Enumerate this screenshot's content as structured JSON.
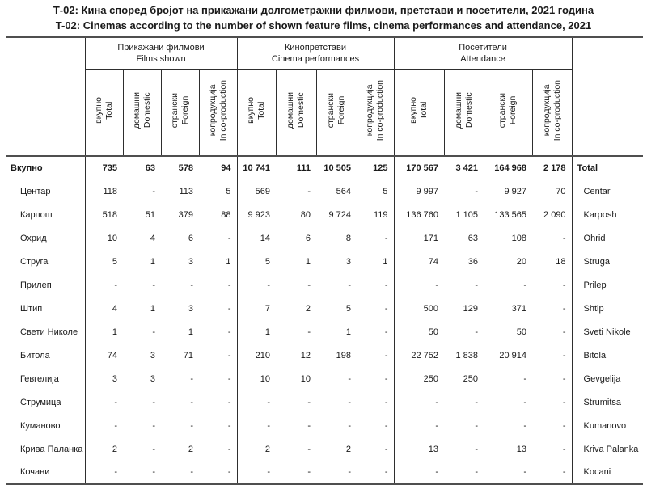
{
  "title": {
    "mk": "Т-02: Кина според бројот на прикажани долгометражни филмови, претстави и посетители, 2021 година",
    "en": "T-02: Cinemas according to the number of shown feature films, cinema performances and attendance, 2021"
  },
  "colors": {
    "text": "#1a1a1a",
    "thick_rule": "#4f4f4f",
    "thin_rule": "#2e2e2e",
    "background": "#ffffff"
  },
  "table": {
    "groups": [
      {
        "label_mk": "Прикажани филмови",
        "label_en": "Films shown"
      },
      {
        "label_mk": "Кинопретстави",
        "label_en": "Cinema performances"
      },
      {
        "label_mk": "Посетители",
        "label_en": "Attendance"
      }
    ],
    "subcolumns": [
      {
        "mk": "вкупно",
        "en": "Total"
      },
      {
        "mk": "домашни",
        "en": "Domestic"
      },
      {
        "mk": "странски",
        "en": "Foreign"
      },
      {
        "mk": "копродукција",
        "en": "In co-production"
      }
    ],
    "rows": [
      {
        "mk": "Вкупно",
        "en": "Total",
        "bold": true,
        "values": [
          "735",
          "63",
          "578",
          "94",
          "10 741",
          "111",
          "10 505",
          "125",
          "170 567",
          "3 421",
          "164 968",
          "2 178"
        ]
      },
      {
        "mk": "Центар",
        "en": "Centar",
        "bold": false,
        "values": [
          "118",
          "-",
          "113",
          "5",
          "569",
          "-",
          "564",
          "5",
          "9 997",
          "-",
          "9 927",
          "70"
        ]
      },
      {
        "mk": "Карпош",
        "en": "Karposh",
        "bold": false,
        "values": [
          "518",
          "51",
          "379",
          "88",
          "9 923",
          "80",
          "9 724",
          "119",
          "136 760",
          "1 105",
          "133 565",
          "2 090"
        ]
      },
      {
        "mk": "Охрид",
        "en": "Ohrid",
        "bold": false,
        "values": [
          "10",
          "4",
          "6",
          "-",
          "14",
          "6",
          "8",
          "-",
          "171",
          "63",
          "108",
          "-"
        ]
      },
      {
        "mk": "Струга",
        "en": "Struga",
        "bold": false,
        "values": [
          "5",
          "1",
          "3",
          "1",
          "5",
          "1",
          "3",
          "1",
          "74",
          "36",
          "20",
          "18"
        ]
      },
      {
        "mk": "Прилеп",
        "en": "Prilep",
        "bold": false,
        "values": [
          "-",
          "-",
          "-",
          "-",
          "-",
          "-",
          "-",
          "-",
          "-",
          "-",
          "-",
          "-"
        ]
      },
      {
        "mk": "Штип",
        "en": "Shtip",
        "bold": false,
        "values": [
          "4",
          "1",
          "3",
          "-",
          "7",
          "2",
          "5",
          "-",
          "500",
          "129",
          "371",
          "-"
        ]
      },
      {
        "mk": "Свети Николе",
        "en": "Sveti Nikole",
        "bold": false,
        "values": [
          "1",
          "-",
          "1",
          "-",
          "1",
          "-",
          "1",
          "-",
          "50",
          "-",
          "50",
          "-"
        ]
      },
      {
        "mk": "Битола",
        "en": "Bitola",
        "bold": false,
        "values": [
          "74",
          "3",
          "71",
          "-",
          "210",
          "12",
          "198",
          "-",
          "22 752",
          "1 838",
          "20 914",
          "-"
        ]
      },
      {
        "mk": "Гевгелија",
        "en": "Gevgelija",
        "bold": false,
        "values": [
          "3",
          "3",
          "-",
          "-",
          "10",
          "10",
          "-",
          "-",
          "250",
          "250",
          "-",
          "-"
        ]
      },
      {
        "mk": "Струмица",
        "en": "Strumitsa",
        "bold": false,
        "values": [
          "-",
          "-",
          "-",
          "-",
          "-",
          "-",
          "-",
          "-",
          "-",
          "-",
          "-",
          "-"
        ]
      },
      {
        "mk": "Куманово",
        "en": "Kumanovo",
        "bold": false,
        "values": [
          "-",
          "-",
          "-",
          "-",
          "-",
          "-",
          "-",
          "-",
          "-",
          "-",
          "-",
          "-"
        ]
      },
      {
        "mk": "Крива Паланка",
        "en": "Kriva Palanka",
        "bold": false,
        "values": [
          "2",
          "-",
          "2",
          "-",
          "2",
          "-",
          "2",
          "-",
          "13",
          "-",
          "13",
          "-"
        ]
      },
      {
        "mk": "Кочани",
        "en": "Kocani",
        "bold": false,
        "values": [
          "-",
          "-",
          "-",
          "-",
          "-",
          "-",
          "-",
          "-",
          "-",
          "-",
          "-",
          "-"
        ]
      }
    ]
  }
}
